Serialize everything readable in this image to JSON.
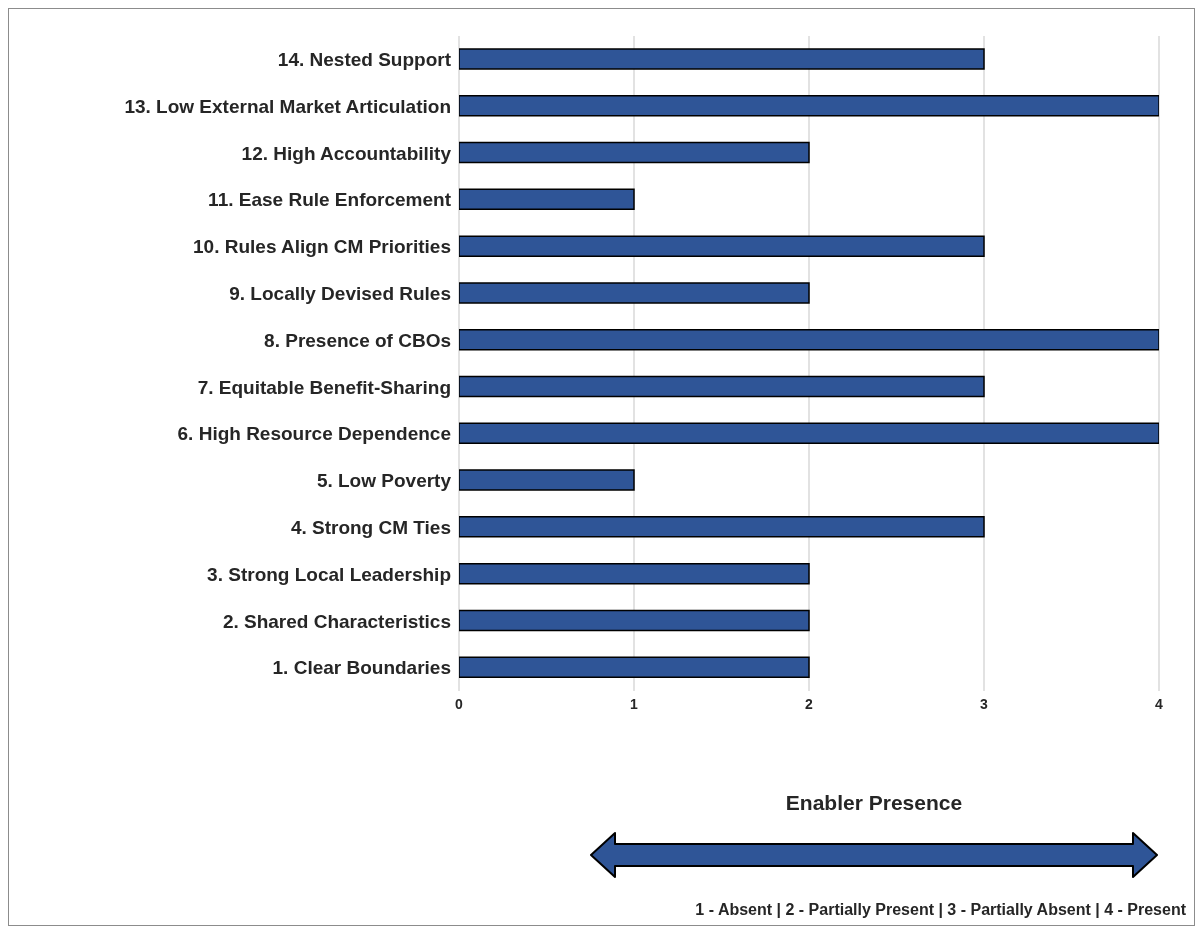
{
  "chart_data": {
    "type": "bar",
    "orientation": "horizontal",
    "categories": [
      "14. Nested Support",
      "13. Low External Market Articulation",
      "12. High Accountability",
      "11. Ease Rule Enforcement",
      "10. Rules Align CM Priorities",
      "9. Locally Devised Rules",
      "8. Presence of CBOs",
      "7. Equitable Benefit-Sharing",
      "6. High Resource Dependence",
      "5. Low Poverty",
      "4. Strong CM Ties",
      "3. Strong Local Leadership",
      "2. Shared Characteristics",
      "1. Clear Boundaries"
    ],
    "values": [
      3,
      4,
      2,
      1,
      3,
      2,
      4,
      3,
      4,
      1,
      3,
      2,
      2,
      2
    ],
    "color": "#2f5597",
    "xlim": [
      0,
      4
    ],
    "xticks": [
      0,
      1,
      2,
      3,
      4
    ],
    "grid": "x",
    "xlabel": "Enabler Presence",
    "annotations": [
      "1 - Absent | 2 - Partially Present | 3 - Partially Absent | 4 - Present"
    ]
  }
}
